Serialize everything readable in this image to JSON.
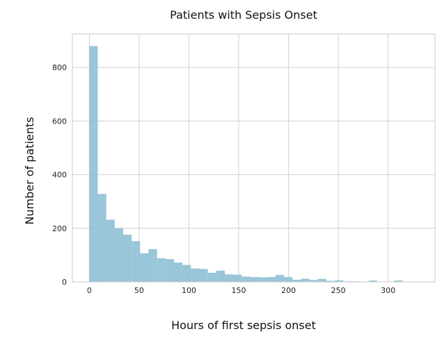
{
  "chart_data": {
    "type": "bar",
    "title": "Patients with Sepsis Onset",
    "xlabel": "Hours of first sepsis onset",
    "ylabel": "Number of patients",
    "xlim": [
      -17,
      347
    ],
    "ylim": [
      0,
      925
    ],
    "xticks": [
      0,
      50,
      100,
      150,
      200,
      250,
      300
    ],
    "yticks": [
      0,
      200,
      400,
      600,
      800
    ],
    "grid": true,
    "bar_color": "#8ec0d4",
    "bin_width": 8.5,
    "bins": [
      {
        "x": 0,
        "value": 880
      },
      {
        "x": 8.5,
        "value": 328
      },
      {
        "x": 17,
        "value": 232
      },
      {
        "x": 25.5,
        "value": 200
      },
      {
        "x": 34,
        "value": 176
      },
      {
        "x": 42.5,
        "value": 152
      },
      {
        "x": 51,
        "value": 107
      },
      {
        "x": 59.5,
        "value": 122
      },
      {
        "x": 68,
        "value": 88
      },
      {
        "x": 76.5,
        "value": 85
      },
      {
        "x": 85,
        "value": 72
      },
      {
        "x": 93.5,
        "value": 63
      },
      {
        "x": 102,
        "value": 50
      },
      {
        "x": 110.5,
        "value": 48
      },
      {
        "x": 119,
        "value": 34
      },
      {
        "x": 127.5,
        "value": 42
      },
      {
        "x": 136,
        "value": 28
      },
      {
        "x": 144.5,
        "value": 27
      },
      {
        "x": 153,
        "value": 20
      },
      {
        "x": 161.5,
        "value": 18
      },
      {
        "x": 170,
        "value": 17
      },
      {
        "x": 178.5,
        "value": 18
      },
      {
        "x": 187,
        "value": 26
      },
      {
        "x": 195.5,
        "value": 18
      },
      {
        "x": 204,
        "value": 8
      },
      {
        "x": 212.5,
        "value": 12
      },
      {
        "x": 221,
        "value": 7
      },
      {
        "x": 229.5,
        "value": 11
      },
      {
        "x": 238,
        "value": 4
      },
      {
        "x": 246.5,
        "value": 6
      },
      {
        "x": 255,
        "value": 2
      },
      {
        "x": 263.5,
        "value": 2
      },
      {
        "x": 272,
        "value": 1
      },
      {
        "x": 280.5,
        "value": 5
      },
      {
        "x": 289,
        "value": 1
      },
      {
        "x": 297.5,
        "value": 1
      },
      {
        "x": 306,
        "value": 5
      }
    ]
  }
}
